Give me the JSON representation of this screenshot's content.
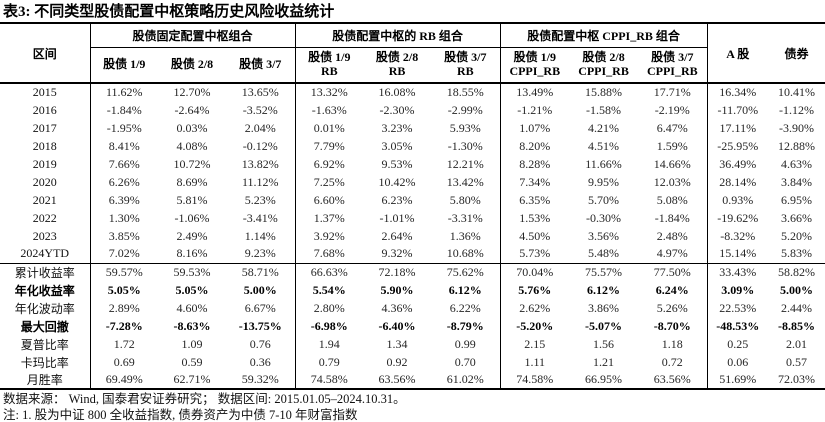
{
  "title": "表3:  不同类型股债配置中枢策略历史风险收益统计",
  "header": {
    "row_label": "区间",
    "groups": [
      {
        "label": "股债固定配置中枢组合",
        "cols": [
          "股债 1/9",
          "股债 2/8",
          "股债 3/7"
        ]
      },
      {
        "label": "股债配置中枢的 RB 组合",
        "cols": [
          "股债 1/9\nRB",
          "股债 2/8\nRB",
          "股债 3/7\nRB"
        ]
      },
      {
        "label": "股债配置中枢 CPPI_RB 组合",
        "cols": [
          "股债 1/9\nCPPI_RB",
          "股债 2/8\nCPPI_RB",
          "股债 3/7\nCPPI_RB"
        ]
      }
    ],
    "singles": [
      "A 股",
      "债券"
    ]
  },
  "rows": [
    {
      "label": "2015",
      "values": [
        "11.62%",
        "12.70%",
        "13.65%",
        "13.32%",
        "16.08%",
        "18.55%",
        "13.49%",
        "15.88%",
        "17.71%",
        "16.34%",
        "10.41%"
      ]
    },
    {
      "label": "2016",
      "values": [
        "-1.84%",
        "-2.64%",
        "-3.52%",
        "-1.63%",
        "-2.30%",
        "-2.99%",
        "-1.21%",
        "-1.58%",
        "-2.19%",
        "-11.70%",
        "-1.12%"
      ]
    },
    {
      "label": "2017",
      "values": [
        "-1.95%",
        "0.03%",
        "2.04%",
        "0.01%",
        "3.23%",
        "5.93%",
        "1.07%",
        "4.21%",
        "6.47%",
        "17.11%",
        "-3.90%"
      ]
    },
    {
      "label": "2018",
      "values": [
        "8.41%",
        "4.08%",
        "-0.12%",
        "7.79%",
        "3.05%",
        "-1.30%",
        "8.20%",
        "4.51%",
        "1.59%",
        "-25.95%",
        "12.88%"
      ]
    },
    {
      "label": "2019",
      "values": [
        "7.66%",
        "10.72%",
        "13.82%",
        "6.92%",
        "9.53%",
        "12.21%",
        "8.28%",
        "11.66%",
        "14.66%",
        "36.49%",
        "4.63%"
      ]
    },
    {
      "label": "2020",
      "values": [
        "6.26%",
        "8.69%",
        "11.12%",
        "7.25%",
        "10.42%",
        "13.42%",
        "7.34%",
        "9.95%",
        "12.03%",
        "28.14%",
        "3.84%"
      ]
    },
    {
      "label": "2021",
      "values": [
        "6.39%",
        "5.81%",
        "5.23%",
        "6.60%",
        "6.23%",
        "5.80%",
        "6.35%",
        "5.70%",
        "5.08%",
        "0.93%",
        "6.95%"
      ]
    },
    {
      "label": "2022",
      "values": [
        "1.30%",
        "-1.06%",
        "-3.41%",
        "1.37%",
        "-1.01%",
        "-3.31%",
        "1.53%",
        "-0.30%",
        "-1.84%",
        "-19.62%",
        "3.66%"
      ]
    },
    {
      "label": "2023",
      "values": [
        "3.85%",
        "2.49%",
        "1.14%",
        "3.92%",
        "2.64%",
        "1.36%",
        "4.50%",
        "3.56%",
        "2.48%",
        "-8.32%",
        "5.20%"
      ]
    },
    {
      "label": "2024YTD",
      "values": [
        "7.02%",
        "8.16%",
        "9.23%",
        "7.68%",
        "9.32%",
        "10.68%",
        "5.73%",
        "5.48%",
        "4.97%",
        "15.14%",
        "5.83%"
      ],
      "sep": true
    },
    {
      "label": "累计收益率",
      "values": [
        "59.57%",
        "59.53%",
        "58.71%",
        "66.63%",
        "72.18%",
        "75.62%",
        "70.04%",
        "75.57%",
        "77.50%",
        "33.43%",
        "58.82%"
      ]
    },
    {
      "label": "年化收益率",
      "values": [
        "5.05%",
        "5.05%",
        "5.00%",
        "5.54%",
        "5.90%",
        "6.12%",
        "5.76%",
        "6.12%",
        "6.24%",
        "3.09%",
        "5.00%"
      ],
      "bold": true
    },
    {
      "label": "年化波动率",
      "values": [
        "2.89%",
        "4.60%",
        "6.67%",
        "2.80%",
        "4.36%",
        "6.22%",
        "2.62%",
        "3.86%",
        "5.26%",
        "22.53%",
        "2.44%"
      ]
    },
    {
      "label": "最大回撤",
      "values": [
        "-7.28%",
        "-8.63%",
        "-13.75%",
        "-6.98%",
        "-6.40%",
        "-8.79%",
        "-5.20%",
        "-5.07%",
        "-8.70%",
        "-48.53%",
        "-8.85%"
      ],
      "bold": true
    },
    {
      "label": "夏普比率",
      "values": [
        "1.72",
        "1.09",
        "0.76",
        "1.94",
        "1.34",
        "0.99",
        "2.15",
        "1.56",
        "1.18",
        "0.25",
        "2.01"
      ]
    },
    {
      "label": "卡玛比率",
      "values": [
        "0.69",
        "0.59",
        "0.36",
        "0.79",
        "0.92",
        "0.70",
        "1.11",
        "1.21",
        "0.72",
        "0.06",
        "0.57"
      ]
    },
    {
      "label": "月胜率",
      "values": [
        "69.49%",
        "62.71%",
        "59.32%",
        "74.58%",
        "63.56%",
        "61.02%",
        "74.58%",
        "66.95%",
        "63.56%",
        "51.69%",
        "72.03%"
      ]
    }
  ],
  "footer": {
    "source": "数据来源： Wind, 国泰君安证券研究； 数据区间: 2015.01.05–2024.10.31。",
    "note": "注:  1. 股为中证 800 全收益指数, 债券资产为中债 7-10 年财富指数"
  }
}
